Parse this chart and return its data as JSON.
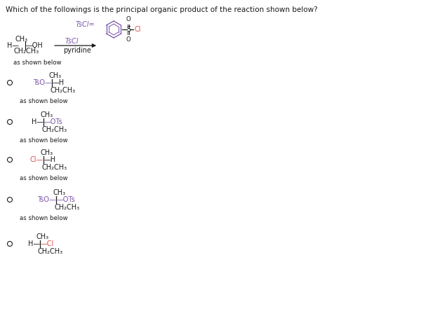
{
  "title": "Which of the followings is the principal organic product of the reaction shown below?",
  "purple": "#7B52AB",
  "red": "#E05050",
  "black": "#1a1a1a",
  "ts_color": "#7B52AB",
  "cl_color": "#E05050",
  "bg": "#ffffff",
  "fs_title": 7.5,
  "fs_main": 7.0,
  "fs_small": 6.2,
  "choices": [
    {
      "left": "TsO—",
      "left_color": "#7B52AB",
      "right": "—H",
      "right_color": "#1a1a1a",
      "top": "CH₃",
      "bottom": "CH₂CH₃"
    },
    {
      "left": "H—",
      "left_color": "#1a1a1a",
      "right": "—OTs",
      "right_color": "#7B52AB",
      "top": "CH₃",
      "bottom": "CH₂CH₃"
    },
    {
      "left": "Cl—",
      "left_color": "#E05050",
      "right": "—H",
      "right_color": "#1a1a1a",
      "top": "CH₃",
      "bottom": "CH₂CH₃"
    },
    {
      "left": "TsO—",
      "left_color": "#7B52AB",
      "right": "—OTs",
      "right_color": "#7B52AB",
      "top": "CH₃",
      "bottom": "CH₂CH₃"
    },
    {
      "left": "H—",
      "left_color": "#1a1a1a",
      "right": "—Cl",
      "right_color": "#E05050",
      "top": "CH₃",
      "bottom": "CH₂CH₃"
    }
  ]
}
